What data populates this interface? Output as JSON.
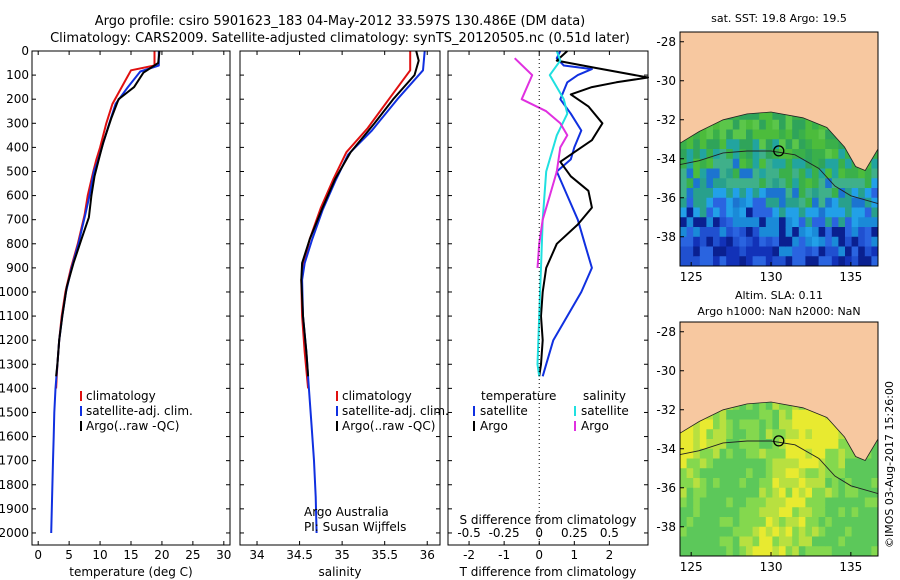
{
  "header": {
    "line1": "Argo profile: csiro 5901623_183 04-May-2012 33.597S 130.486E (DM data)",
    "line2": "Climatology: CARS2009. Satellite-adjusted climatology: synTS_20120505.nc (0.51d later)"
  },
  "side_label": "©IMOS 03-Aug-2017 15:26:00",
  "colors": {
    "clim": "#e01010",
    "sat": "#1030e0",
    "argo": "#000000",
    "sal_sat": "#20e0e0",
    "sal_argo": "#e030e0",
    "land": "#f7c8a0"
  },
  "chart_data": [
    {
      "type": "line",
      "id": "temperature-profile",
      "xlabel": "temperature (deg C)",
      "ylim": [
        2050,
        0
      ],
      "xlim": [
        -1,
        31
      ],
      "xticks": [
        0,
        5,
        10,
        15,
        20,
        25,
        30
      ],
      "yticks": [
        0,
        100,
        200,
        300,
        400,
        500,
        600,
        700,
        800,
        900,
        1000,
        1100,
        1200,
        1300,
        1400,
        1500,
        1600,
        1700,
        1800,
        1900,
        2000
      ],
      "legend": [
        "climatology",
        "satellite-adj. clim.",
        "Argo(..raw -QC)"
      ],
      "series": [
        {
          "name": "climatology",
          "color": "#e01010",
          "points": [
            [
              18.8,
              0
            ],
            [
              18.8,
              60
            ],
            [
              15,
              80
            ],
            [
              13.5,
              150
            ],
            [
              12,
              220
            ],
            [
              11,
              300
            ],
            [
              10,
              400
            ],
            [
              9.4,
              450
            ],
            [
              8.9,
              500
            ],
            [
              8,
              600
            ],
            [
              7.5,
              680
            ],
            [
              6.4,
              800
            ],
            [
              5.3,
              900
            ],
            [
              4.4,
              1000
            ],
            [
              3.8,
              1100
            ],
            [
              3.4,
              1200
            ],
            [
              3.1,
              1300
            ],
            [
              2.9,
              1400
            ]
          ]
        },
        {
          "name": "satellite-adj. clim.",
          "color": "#1030e0",
          "points": [
            [
              19.5,
              0
            ],
            [
              19.5,
              60
            ],
            [
              16.5,
              85
            ],
            [
              14.5,
              150
            ],
            [
              12.5,
              220
            ],
            [
              11.5,
              300
            ],
            [
              10.3,
              400
            ],
            [
              9.6,
              460
            ],
            [
              9,
              500
            ],
            [
              8.3,
              600
            ],
            [
              7.6,
              680
            ],
            [
              6.5,
              800
            ],
            [
              5.4,
              900
            ],
            [
              4.5,
              1000
            ],
            [
              3.9,
              1100
            ],
            [
              3.4,
              1200
            ],
            [
              3.1,
              1300
            ],
            [
              2.8,
              1400
            ],
            [
              2.6,
              1500
            ],
            [
              2.5,
              1600
            ],
            [
              2.4,
              1700
            ],
            [
              2.3,
              1800
            ],
            [
              2.2,
              1900
            ],
            [
              2.1,
              2000
            ]
          ]
        },
        {
          "name": "Argo(..raw -QC)",
          "color": "#000000",
          "points": [
            [
              19.6,
              0
            ],
            [
              19.4,
              50
            ],
            [
              17,
              90
            ],
            [
              15.5,
              150
            ],
            [
              13,
              200
            ],
            [
              11.8,
              280
            ],
            [
              10.5,
              380
            ],
            [
              9.8,
              450
            ],
            [
              9.1,
              520
            ],
            [
              8.6,
              600
            ],
            [
              8.2,
              690
            ],
            [
              7,
              780
            ],
            [
              5.7,
              880
            ],
            [
              4.6,
              980
            ],
            [
              3.9,
              1100
            ],
            [
              3.4,
              1200
            ],
            [
              3.1,
              1300
            ],
            [
              2.9,
              1350
            ]
          ]
        }
      ]
    },
    {
      "type": "line",
      "id": "salinity-profile",
      "xlabel": "salinity",
      "ylim": [
        2050,
        0
      ],
      "xlim": [
        33.8,
        36.15
      ],
      "xticks": [
        34,
        34.5,
        35,
        35.5,
        36
      ],
      "xtick_labels": [
        "34",
        "34.5",
        "35",
        "35.5",
        "36"
      ],
      "legend": [
        "climatology",
        "satellite-adj. clim.",
        "Argo(..raw -QC)"
      ],
      "annotations": [
        "Argo Australia",
        "PI: Susan Wijffels"
      ],
      "series": [
        {
          "name": "climatology",
          "color": "#e01010",
          "points": [
            [
              35.8,
              0
            ],
            [
              35.8,
              80
            ],
            [
              35.55,
              200
            ],
            [
              35.3,
              320
            ],
            [
              35.05,
              420
            ],
            [
              34.9,
              530
            ],
            [
              34.75,
              650
            ],
            [
              34.62,
              780
            ],
            [
              34.55,
              880
            ],
            [
              34.52,
              950
            ],
            [
              34.53,
              1100
            ],
            [
              34.56,
              1250
            ],
            [
              34.6,
              1400
            ]
          ]
        },
        {
          "name": "satellite-adj. clim.",
          "color": "#1030e0",
          "points": [
            [
              35.97,
              0
            ],
            [
              35.95,
              80
            ],
            [
              35.65,
              200
            ],
            [
              35.35,
              330
            ],
            [
              35.07,
              430
            ],
            [
              34.92,
              540
            ],
            [
              34.77,
              660
            ],
            [
              34.65,
              780
            ],
            [
              34.56,
              880
            ],
            [
              34.53,
              950
            ],
            [
              34.54,
              1100
            ],
            [
              34.58,
              1250
            ],
            [
              34.61,
              1400
            ],
            [
              34.64,
              1550
            ],
            [
              34.67,
              1700
            ],
            [
              34.69,
              1850
            ],
            [
              34.7,
              2000
            ]
          ]
        },
        {
          "name": "Argo(..raw -QC)",
          "color": "#000000",
          "points": [
            [
              35.87,
              0
            ],
            [
              35.9,
              40
            ],
            [
              35.85,
              100
            ],
            [
              35.6,
              200
            ],
            [
              35.38,
              300
            ],
            [
              35.1,
              420
            ],
            [
              34.92,
              530
            ],
            [
              34.77,
              650
            ],
            [
              34.62,
              780
            ],
            [
              34.53,
              880
            ],
            [
              34.52,
              950
            ],
            [
              34.54,
              1100
            ],
            [
              34.58,
              1250
            ],
            [
              34.6,
              1350
            ]
          ]
        }
      ]
    },
    {
      "type": "line",
      "id": "difference-profile",
      "xlabel": "T difference from climatology",
      "x2label": "S difference from climatology",
      "ylim": [
        2050,
        0
      ],
      "xlim": [
        -2.6,
        3.1
      ],
      "xticks": [
        -2,
        -1,
        0,
        1,
        2
      ],
      "xtick_labels": [
        "-2",
        "-1",
        "0",
        "1",
        "2"
      ],
      "x2ticks": [
        -2,
        -1,
        0,
        1,
        2
      ],
      "x2tick_labels": [
        "-0.5",
        "-0.25",
        "0",
        "0.25",
        "0.5"
      ],
      "legend_temperature": [
        "temperature",
        "satellite",
        "Argo"
      ],
      "legend_salinity": [
        "salinity",
        "satellite",
        "Argo"
      ],
      "series": [
        {
          "name": "temperature satellite",
          "color": "#1030e0",
          "points": [
            [
              0.6,
              0
            ],
            [
              0.5,
              30
            ],
            [
              0.7,
              60
            ],
            [
              1.5,
              75
            ],
            [
              1.1,
              100
            ],
            [
              0.8,
              130
            ],
            [
              0.6,
              200
            ],
            [
              0.9,
              260
            ],
            [
              1.2,
              330
            ],
            [
              1,
              400
            ],
            [
              0.9,
              450
            ],
            [
              0.5,
              500
            ],
            [
              0.8,
              600
            ],
            [
              1.1,
              700
            ],
            [
              1.3,
              800
            ],
            [
              1.5,
              900
            ],
            [
              1.2,
              1000
            ],
            [
              0.8,
              1100
            ],
            [
              0.4,
              1200
            ],
            [
              0.2,
              1300
            ],
            [
              0.1,
              1350
            ]
          ]
        },
        {
          "name": "temperature Argo",
          "color": "#000000",
          "points": [
            [
              0.8,
              0
            ],
            [
              0.5,
              40
            ],
            [
              1.6,
              70
            ],
            [
              3.1,
              110
            ],
            [
              2.2,
              130
            ],
            [
              1.5,
              150
            ],
            [
              0.9,
              180
            ],
            [
              1.4,
              230
            ],
            [
              1.8,
              300
            ],
            [
              1.5,
              370
            ],
            [
              1,
              420
            ],
            [
              0.6,
              460
            ],
            [
              0.9,
              520
            ],
            [
              1.4,
              580
            ],
            [
              1.5,
              650
            ],
            [
              1.1,
              720
            ],
            [
              0.5,
              800
            ],
            [
              0.2,
              900
            ],
            [
              0.1,
              1000
            ],
            [
              0.05,
              1100
            ],
            [
              0.1,
              1200
            ],
            [
              0.05,
              1300
            ],
            [
              0,
              1350
            ]
          ]
        },
        {
          "name": "salinity satellite",
          "color": "#20e0e0",
          "points": [
            [
              0.5,
              0
            ],
            [
              0.6,
              40
            ],
            [
              0.3,
              100
            ],
            [
              0.5,
              150
            ],
            [
              0.7,
              200
            ],
            [
              0.8,
              260
            ],
            [
              0.5,
              350
            ],
            [
              0.2,
              500
            ],
            [
              0.1,
              700
            ],
            [
              0.05,
              900
            ],
            [
              0,
              1100
            ],
            [
              -0.05,
              1300
            ],
            [
              0,
              1350
            ]
          ]
        },
        {
          "name": "salinity Argo",
          "color": "#e030e0",
          "points": [
            [
              -0.7,
              30
            ],
            [
              -0.2,
              100
            ],
            [
              -0.5,
              200
            ],
            [
              0.2,
              250
            ],
            [
              0.6,
              300
            ],
            [
              0.8,
              350
            ],
            [
              0.6,
              400
            ],
            [
              0.5,
              500
            ],
            [
              0.3,
              600
            ],
            [
              0.1,
              700
            ],
            [
              0,
              800
            ],
            [
              -0.05,
              900
            ]
          ]
        }
      ]
    },
    {
      "type": "heatmap",
      "id": "sst-map",
      "title": "sat. SST: 19.8  Argo: 19.5",
      "xlim": [
        124.3,
        136.7
      ],
      "ylim": [
        -39.5,
        -27.5
      ],
      "xticks": [
        125,
        130,
        135
      ],
      "yticks": [
        -28,
        -30,
        -32,
        -34,
        -36,
        -38
      ],
      "marker": [
        130.486,
        -33.597
      ]
    },
    {
      "type": "heatmap",
      "id": "sla-map",
      "title": "Altim. SLA: 0.11",
      "subtitle": "Argo h1000: NaN  h2000: NaN",
      "xlim": [
        124.3,
        136.7
      ],
      "ylim": [
        -39.5,
        -27.5
      ],
      "xticks": [
        125,
        130,
        135
      ],
      "yticks": [
        -28,
        -30,
        -32,
        -34,
        -36,
        -38
      ],
      "marker": [
        130.486,
        -33.597
      ]
    }
  ]
}
